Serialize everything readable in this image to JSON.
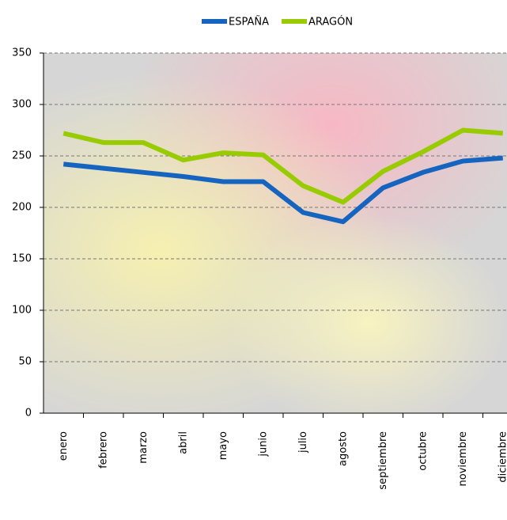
{
  "chart_data": {
    "type": "line",
    "categories": [
      "enero",
      "febrero",
      "marzo",
      "abril",
      "mayo",
      "junio",
      "julio",
      "agosto",
      "septiembre",
      "octubre",
      "noviembre",
      "diciembre"
    ],
    "series": [
      {
        "name": "ESPAÑA",
        "color": "#1565c0",
        "values": [
          242,
          238,
          234,
          230,
          225,
          225,
          195,
          186,
          219,
          234,
          245,
          248
        ]
      },
      {
        "name": "ARAGÓN",
        "color": "#99cc00",
        "values": [
          272,
          263,
          263,
          246,
          253,
          251,
          221,
          205,
          235,
          254,
          275,
          272
        ]
      }
    ],
    "ylim": [
      0,
      350
    ],
    "yticks": [
      0,
      50,
      100,
      150,
      200,
      250,
      300,
      350
    ],
    "grid": true,
    "legend": "top"
  }
}
